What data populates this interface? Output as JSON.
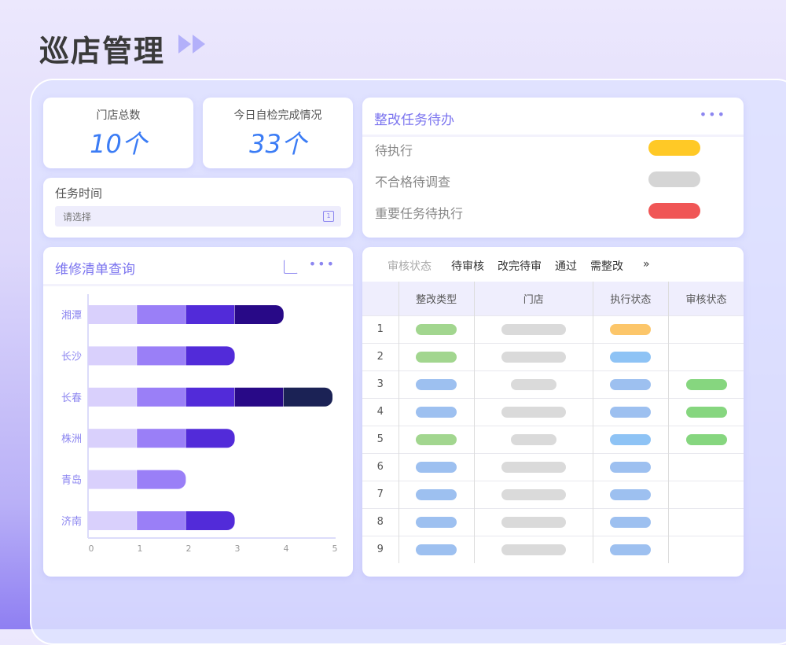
{
  "header": {
    "title": "巡店管理",
    "arrows_icon": "double-play-icon"
  },
  "stats": [
    {
      "label": "门店总数",
      "value": "10个"
    },
    {
      "label": "今日自检完成情况",
      "value": "33个"
    }
  ],
  "task_time": {
    "label": "任务时间",
    "placeholder": "请选择",
    "icon": "calendar-icon"
  },
  "todo": {
    "title": "整改任务待办",
    "more_icon": "more-icon",
    "items": [
      {
        "label": "待执行",
        "color": "#ffc926"
      },
      {
        "label": "不合格待调查",
        "color": "#d5d5d5"
      },
      {
        "label": "重要任务待执行",
        "color": "#f05656"
      }
    ]
  },
  "repair": {
    "title": "维修清单查询",
    "share_icon": "share-icon",
    "more_icon": "more-icon"
  },
  "chart_data": {
    "type": "bar",
    "orientation": "horizontal",
    "stacked": true,
    "categories": [
      "湘潭",
      "长沙",
      "长春",
      "株洲",
      "青岛",
      "济南"
    ],
    "segment_colors": [
      "#d9d0fc",
      "#9a7ff7",
      "#522bd9",
      "#280987",
      "#1b2255"
    ],
    "values": [
      4,
      3,
      5,
      3,
      2,
      3
    ],
    "xlim": [
      0,
      5
    ],
    "xticks": [
      0,
      1,
      2,
      3,
      4,
      5
    ],
    "grid": false
  },
  "audit": {
    "filter_label": "审核状态",
    "tabs": [
      "待审核",
      "改完待审",
      "通过",
      "需整改"
    ],
    "more": "»",
    "columns": [
      "",
      "整改类型",
      "门店",
      "执行状态",
      "审核状态"
    ],
    "rows": [
      {
        "no": "1",
        "type": "#a2d68f",
        "store": "long",
        "exec": "#fcc66a",
        "audit": null
      },
      {
        "no": "2",
        "type": "#a2d68f",
        "store": "long",
        "exec": "#8ec3f5",
        "audit": null
      },
      {
        "no": "3",
        "type": "#9dc0f0",
        "store": "short",
        "exec": "#9dc0f0",
        "audit": "#86d67f"
      },
      {
        "no": "4",
        "type": "#9dc0f0",
        "store": "long",
        "exec": "#9dc0f0",
        "audit": "#86d67f"
      },
      {
        "no": "5",
        "type": "#a2d68f",
        "store": "short",
        "exec": "#8ec3f5",
        "audit": "#86d67f"
      },
      {
        "no": "6",
        "type": "#9dc0f0",
        "store": "long",
        "exec": "#9dc0f0",
        "audit": null
      },
      {
        "no": "7",
        "type": "#9dc0f0",
        "store": "long",
        "exec": "#9dc0f0",
        "audit": null
      },
      {
        "no": "8",
        "type": "#9dc0f0",
        "store": "long",
        "exec": "#9dc0f0",
        "audit": null
      },
      {
        "no": "9",
        "type": "#9dc0f0",
        "store": "long",
        "exec": "#9dc0f0",
        "audit": null
      }
    ]
  }
}
